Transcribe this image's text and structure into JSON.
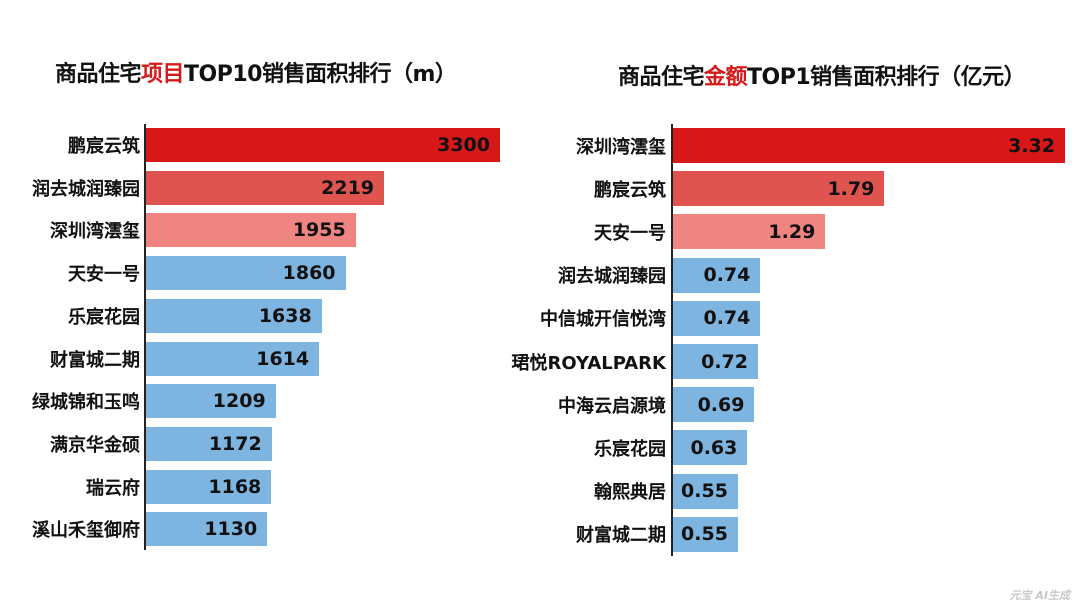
{
  "charts": [
    {
      "title_pre": "商品住宅",
      "title_highlight": "项目",
      "title_post": "TOP10销售面积排行（m）"
    },
    {
      "title_pre": "商品住宅",
      "title_highlight": "金额",
      "title_post": "TOP1销售面积排行（亿元）"
    }
  ],
  "watermark": "元宝 AI生成",
  "colors": {
    "rank1": "#d81818",
    "rank2": "#e05450",
    "rank3": "#ef8480",
    "rest": "#7eb4e0",
    "title_highlight": "#d41a1a"
  },
  "chart_data": [
    {
      "type": "bar",
      "orientation": "horizontal",
      "title": "商品住宅项目TOP10销售面积排行（m）",
      "categories": [
        "鹏宸云筑",
        "润去城润臻园",
        "深圳湾澐玺",
        "天安一号",
        "乐宸花园",
        "财富城二期",
        "绿城锦和玉鸣",
        "满京华金硕",
        "瑞云府",
        "溪山禾玺御府"
      ],
      "values": [
        3300,
        2219,
        1955,
        1860,
        1638,
        1614,
        1209,
        1172,
        1168,
        1130
      ],
      "value_labels": [
        "3300",
        "2219",
        "1955",
        "1860",
        "1638",
        "1614",
        "1209",
        "1172",
        "1168",
        "1130"
      ],
      "xlim": [
        0,
        3300
      ],
      "grid": false,
      "legend": "none"
    },
    {
      "type": "bar",
      "orientation": "horizontal",
      "title": "商品住宅金额TOP1销售面积排行（亿元）",
      "categories": [
        "深圳湾澐玺",
        "鹏宸云筑",
        "天安一号",
        "润去城润臻园",
        "中信城开信悦湾",
        "珺悦ROYALPARK",
        "中海云启源境",
        "乐宸花园",
        "翰熙典居",
        "财富城二期"
      ],
      "values": [
        3.32,
        1.79,
        1.29,
        0.74,
        0.74,
        0.72,
        0.69,
        0.63,
        0.55,
        0.55
      ],
      "value_labels": [
        "3.32",
        "1.79",
        "1.29",
        "0.74",
        "0.74",
        "0.72",
        "0.69",
        "0.63",
        "0.55",
        "0.55"
      ],
      "xlim": [
        0,
        3.32
      ],
      "grid": false,
      "legend": "none"
    }
  ]
}
